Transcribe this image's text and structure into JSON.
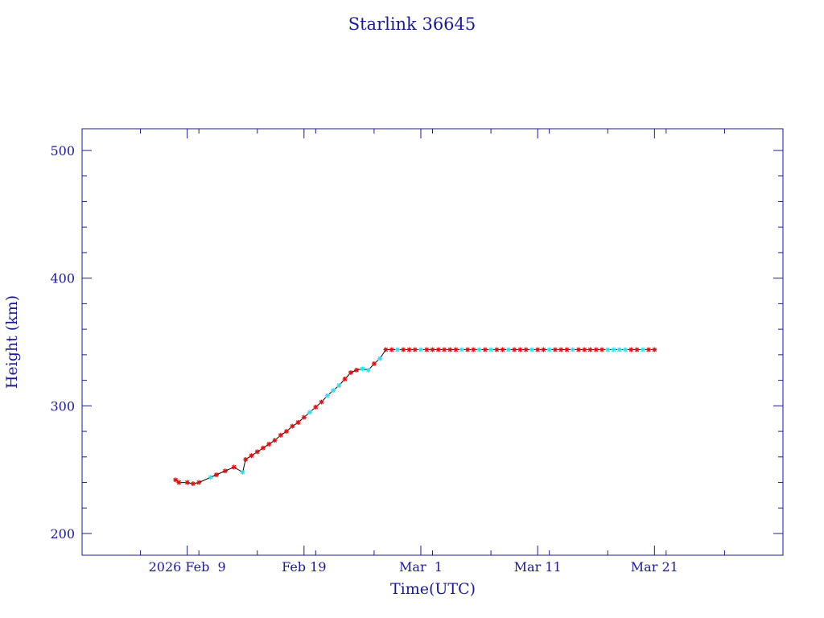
{
  "chart_data": {
    "type": "scatter",
    "title": "Starlink 36645",
    "xlabel": "Time(UTC)",
    "ylabel": "Height (km)",
    "xlim": [
      "2026-01-31",
      "2026-04-01"
    ],
    "ylim": [
      183,
      517
    ],
    "x_ticks": [
      {
        "date": "2026-02-09",
        "label": "2026 Feb  9"
      },
      {
        "date": "2026-02-19",
        "label": "Feb 19"
      },
      {
        "date": "2026-03-01",
        "label": "Mar  1"
      },
      {
        "date": "2026-03-11",
        "label": "Mar 11"
      },
      {
        "date": "2026-03-21",
        "label": "Mar 21"
      }
    ],
    "y_ticks": [
      200,
      300,
      400,
      500
    ],
    "grid": false,
    "colors": {
      "frame": "#1a1a99",
      "line": "#000000",
      "marker_red": "#dd1111",
      "marker_cyan": "#33ddee"
    },
    "series": [
      {
        "marker": "asterisk",
        "points": [
          {
            "x": "2026-02-08T00:00",
            "y": 242,
            "c": "red"
          },
          {
            "x": "2026-02-08T07:00",
            "y": 240,
            "c": "red"
          },
          {
            "x": "2026-02-09T00:00",
            "y": 240,
            "c": "red"
          },
          {
            "x": "2026-02-09T12:00",
            "y": 239,
            "c": "red"
          },
          {
            "x": "2026-02-10T00:00",
            "y": 240,
            "c": "red"
          },
          {
            "x": "2026-02-11T00:00",
            "y": 244,
            "c": "cyan"
          },
          {
            "x": "2026-02-11T12:00",
            "y": 246,
            "c": "red"
          },
          {
            "x": "2026-02-12T06:00",
            "y": 249,
            "c": "red"
          },
          {
            "x": "2026-02-13T00:00",
            "y": 252,
            "c": "red"
          },
          {
            "x": "2026-02-13T18:00",
            "y": 248,
            "c": "cyan"
          },
          {
            "x": "2026-02-14T00:00",
            "y": 258,
            "c": "red"
          },
          {
            "x": "2026-02-14T12:00",
            "y": 261,
            "c": "red"
          },
          {
            "x": "2026-02-15T00:00",
            "y": 264,
            "c": "red"
          },
          {
            "x": "2026-02-15T12:00",
            "y": 267,
            "c": "red"
          },
          {
            "x": "2026-02-16T00:00",
            "y": 270,
            "c": "red"
          },
          {
            "x": "2026-02-16T12:00",
            "y": 273,
            "c": "red"
          },
          {
            "x": "2026-02-17T00:00",
            "y": 277,
            "c": "red"
          },
          {
            "x": "2026-02-17T12:00",
            "y": 280,
            "c": "red"
          },
          {
            "x": "2026-02-18T00:00",
            "y": 284,
            "c": "red"
          },
          {
            "x": "2026-02-18T12:00",
            "y": 287,
            "c": "red"
          },
          {
            "x": "2026-02-19T00:00",
            "y": 291,
            "c": "red"
          },
          {
            "x": "2026-02-19T12:00",
            "y": 295,
            "c": "cyan"
          },
          {
            "x": "2026-02-20T00:00",
            "y": 299,
            "c": "red"
          },
          {
            "x": "2026-02-20T12:00",
            "y": 303,
            "c": "red"
          },
          {
            "x": "2026-02-21T00:00",
            "y": 308,
            "c": "cyan"
          },
          {
            "x": "2026-02-21T12:00",
            "y": 312,
            "c": "cyan"
          },
          {
            "x": "2026-02-22T00:00",
            "y": 316,
            "c": "cyan"
          },
          {
            "x": "2026-02-22T12:00",
            "y": 321,
            "c": "red"
          },
          {
            "x": "2026-02-23T00:00",
            "y": 326,
            "c": "red"
          },
          {
            "x": "2026-02-23T12:00",
            "y": 328,
            "c": "red"
          },
          {
            "x": "2026-02-24T00:00",
            "y": 329,
            "c": "cyan"
          },
          {
            "x": "2026-02-24T12:00",
            "y": 328,
            "c": "cyan"
          },
          {
            "x": "2026-02-25T00:00",
            "y": 333,
            "c": "red"
          },
          {
            "x": "2026-02-25T12:00",
            "y": 337,
            "c": "cyan"
          },
          {
            "x": "2026-02-26T00:00",
            "y": 344,
            "c": "red"
          },
          {
            "x": "2026-02-26T12:00",
            "y": 344,
            "c": "red"
          },
          {
            "x": "2026-02-27T00:00",
            "y": 344,
            "c": "cyan"
          },
          {
            "x": "2026-02-27T12:00",
            "y": 344,
            "c": "red"
          },
          {
            "x": "2026-02-28T00:00",
            "y": 344,
            "c": "red"
          },
          {
            "x": "2026-02-28T12:00",
            "y": 344,
            "c": "red"
          },
          {
            "x": "2026-03-01T00:00",
            "y": 344,
            "c": "cyan"
          },
          {
            "x": "2026-03-01T12:00",
            "y": 344,
            "c": "red"
          },
          {
            "x": "2026-03-02T00:00",
            "y": 344,
            "c": "red"
          },
          {
            "x": "2026-03-02T12:00",
            "y": 344,
            "c": "red"
          },
          {
            "x": "2026-03-03T00:00",
            "y": 344,
            "c": "red"
          },
          {
            "x": "2026-03-03T12:00",
            "y": 344,
            "c": "red"
          },
          {
            "x": "2026-03-04T00:00",
            "y": 344,
            "c": "red"
          },
          {
            "x": "2026-03-04T12:00",
            "y": 344,
            "c": "cyan"
          },
          {
            "x": "2026-03-05T00:00",
            "y": 344,
            "c": "red"
          },
          {
            "x": "2026-03-05T12:00",
            "y": 344,
            "c": "red"
          },
          {
            "x": "2026-03-06T00:00",
            "y": 344,
            "c": "cyan"
          },
          {
            "x": "2026-03-06T12:00",
            "y": 344,
            "c": "red"
          },
          {
            "x": "2026-03-07T00:00",
            "y": 344,
            "c": "cyan"
          },
          {
            "x": "2026-03-07T12:00",
            "y": 344,
            "c": "red"
          },
          {
            "x": "2026-03-08T00:00",
            "y": 344,
            "c": "red"
          },
          {
            "x": "2026-03-08T12:00",
            "y": 344,
            "c": "cyan"
          },
          {
            "x": "2026-03-09T00:00",
            "y": 344,
            "c": "red"
          },
          {
            "x": "2026-03-09T12:00",
            "y": 344,
            "c": "red"
          },
          {
            "x": "2026-03-10T00:00",
            "y": 344,
            "c": "red"
          },
          {
            "x": "2026-03-10T12:00",
            "y": 344,
            "c": "cyan"
          },
          {
            "x": "2026-03-11T00:00",
            "y": 344,
            "c": "red"
          },
          {
            "x": "2026-03-11T12:00",
            "y": 344,
            "c": "red"
          },
          {
            "x": "2026-03-12T00:00",
            "y": 344,
            "c": "cyan"
          },
          {
            "x": "2026-03-12T12:00",
            "y": 344,
            "c": "red"
          },
          {
            "x": "2026-03-13T00:00",
            "y": 344,
            "c": "red"
          },
          {
            "x": "2026-03-13T12:00",
            "y": 344,
            "c": "red"
          },
          {
            "x": "2026-03-14T00:00",
            "y": 344,
            "c": "cyan"
          },
          {
            "x": "2026-03-14T12:00",
            "y": 344,
            "c": "red"
          },
          {
            "x": "2026-03-15T00:00",
            "y": 344,
            "c": "red"
          },
          {
            "x": "2026-03-15T12:00",
            "y": 344,
            "c": "red"
          },
          {
            "x": "2026-03-16T00:00",
            "y": 344,
            "c": "red"
          },
          {
            "x": "2026-03-16T12:00",
            "y": 344,
            "c": "red"
          },
          {
            "x": "2026-03-17T00:00",
            "y": 344,
            "c": "cyan"
          },
          {
            "x": "2026-03-17T12:00",
            "y": 344,
            "c": "cyan"
          },
          {
            "x": "2026-03-18T00:00",
            "y": 344,
            "c": "cyan"
          },
          {
            "x": "2026-03-18T12:00",
            "y": 344,
            "c": "cyan"
          },
          {
            "x": "2026-03-19T00:00",
            "y": 344,
            "c": "red"
          },
          {
            "x": "2026-03-19T12:00",
            "y": 344,
            "c": "red"
          },
          {
            "x": "2026-03-20T00:00",
            "y": 344,
            "c": "cyan"
          },
          {
            "x": "2026-03-20T12:00",
            "y": 344,
            "c": "red"
          },
          {
            "x": "2026-03-21T00:00",
            "y": 344,
            "c": "red"
          }
        ]
      }
    ]
  }
}
